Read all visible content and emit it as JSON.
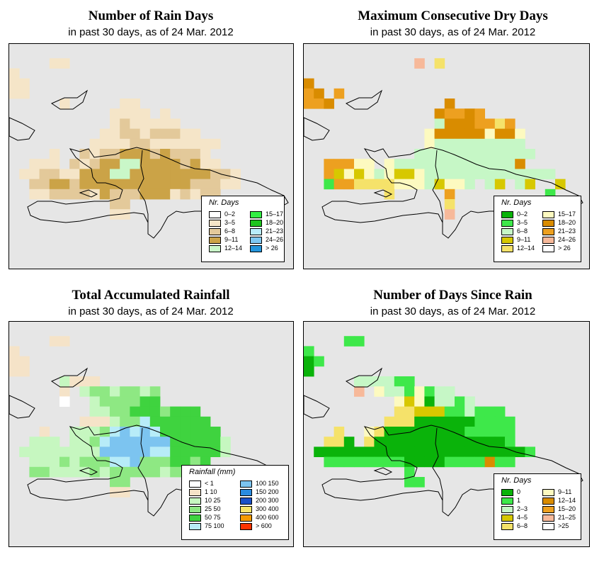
{
  "panels": [
    {
      "title": "Number of Rain Days",
      "subtitle": "in past 30 days, as of  24 Mar. 2012",
      "legend": {
        "title": "Nr. Days",
        "items": [
          {
            "label": "0–2",
            "color": "#ffffff"
          },
          {
            "label": "3–5",
            "color": "#f5e5c8"
          },
          {
            "label": "6–8",
            "color": "#e3c99a"
          },
          {
            "label": "9–11",
            "color": "#cba347"
          },
          {
            "label": "12–14",
            "color": "#c9f7c8"
          },
          {
            "label": "15–17",
            "color": "#33ee44"
          },
          {
            "label": "18–20",
            "color": "#1ec41e"
          },
          {
            "label": "21–23",
            "color": "#b8ecfa"
          },
          {
            "label": "24–26",
            "color": "#7ec8f2"
          },
          {
            "label": "> 26",
            "color": "#2596dc"
          }
        ]
      },
      "palette": [
        "#ffffff",
        "#f5e5c8",
        "#e3c99a",
        "#cba347",
        "#c9f7c8"
      ]
    },
    {
      "title": "Maximum Consecutive Dry Days",
      "subtitle": "in past 30 days, as of  24 Mar. 2012",
      "legend": {
        "title": "Nr. Days",
        "items": [
          {
            "label": "0–2",
            "color": "#0ab30a"
          },
          {
            "label": "3–5",
            "color": "#3ee84a"
          },
          {
            "label": "6–8",
            "color": "#c6f7c6"
          },
          {
            "label": "9–11",
            "color": "#d7c800"
          },
          {
            "label": "12–14",
            "color": "#f5e26a"
          },
          {
            "label": "15–17",
            "color": "#fdfac0"
          },
          {
            "label": "18–20",
            "color": "#d98c00"
          },
          {
            "label": "21–23",
            "color": "#eda020"
          },
          {
            "label": "24–26",
            "color": "#f7b99a"
          },
          {
            "label": "> 26",
            "color": "#ffffff"
          }
        ]
      },
      "palette": [
        "#c6f7c6",
        "#d98c00",
        "#eda020",
        "#f5e26a",
        "#d7c800",
        "#fdfac0",
        "#3ee84a",
        "#f7b99a"
      ]
    },
    {
      "title": "Total Accumulated Rainfall",
      "subtitle": "in past 30 days, as of  24 Mar. 2012",
      "legend": {
        "title": "Rainfall (mm)",
        "items": [
          {
            "label": "< 1",
            "color": "#ffffff"
          },
          {
            "label": "1   10",
            "color": "#f5e3c8"
          },
          {
            "label": "10   25",
            "color": "#c6f7c0"
          },
          {
            "label": "25   50",
            "color": "#8ee883"
          },
          {
            "label": "50   75",
            "color": "#3fd33f"
          },
          {
            "label": "75  100",
            "color": "#b7ecf8"
          },
          {
            "label": "100  150",
            "color": "#7cc4f0"
          },
          {
            "label": "150  200",
            "color": "#2a8ce0"
          },
          {
            "label": "200  300",
            "color": "#1a50c8"
          },
          {
            "label": "300  400",
            "color": "#f7e46a"
          },
          {
            "label": "400  600",
            "color": "#f59a00"
          },
          {
            "label": "> 600",
            "color": "#ff3300"
          }
        ]
      },
      "palette": [
        "#ffffff",
        "#f5e3c8",
        "#c6f7c0",
        "#8ee883",
        "#3fd33f",
        "#b7ecf8",
        "#7cc4f0"
      ]
    },
    {
      "title": "Number of Days Since Rain",
      "subtitle": "in past 30 days, as of  24 Mar. 2012",
      "legend": {
        "title": "Nr. Days",
        "items": [
          {
            "label": "0",
            "color": "#0ab30a"
          },
          {
            "label": "1",
            "color": "#3ee84a"
          },
          {
            "label": "2–3",
            "color": "#c6f7c6"
          },
          {
            "label": "4–5",
            "color": "#d7c800"
          },
          {
            "label": "6–8",
            "color": "#f5e26a"
          },
          {
            "label": "9–11",
            "color": "#fdfac0"
          },
          {
            "label": "12–14",
            "color": "#d98c00"
          },
          {
            "label": "15–20",
            "color": "#eda020"
          },
          {
            "label": "21–25",
            "color": "#f7b99a"
          },
          {
            "label": ">25",
            "color": "#ffffff"
          }
        ]
      },
      "palette": [
        "#0ab30a",
        "#3ee84a",
        "#c6f7c6",
        "#d7c800",
        "#f5e26a",
        "#fdfac0",
        "#d98c00",
        "#f7b99a"
      ]
    }
  ],
  "grids": [
    [
      "......................",
      "....11................",
      "1......................",
      "11.....................",
      "11.....................",
      ".....1.....11..........",
      "..........1111.1.......",
      "..........1211111......",
      ".........1122122211....",
      "........1111221111111..",
      "....1..2122333232221...",
      "..111.212334433332311..",
      ".1122113334433333333221",
      "..223323333333333322211",
      "..1122221322233312122..",
      "..........22...........",
      "..........11...........",
      "......................."
    ],
    [
      "...........................",
      "...........7.3.............",
      "...........................",
      "1..........................",
      "21.2.......................",
      "221...........1............",
      ".............12212.........",
      ".............01112232......",
      "............5111115115.....",
      "............5000000000.....",
      "...........000000000000....",
      "..22255.50000000000001.....",
      "..24545054450000000000000..",
      "..622333355504550.04.04..4.",
      "........3.....2.........6..",
      "..............3............",
      "..............7............"
    ],
    [
      "......................",
      "....11................",
      "1.....................",
      "11....................",
      "11....................",
      ".....2111.............",
      ".....1.23323323.......",
      ".....0..2333344.......",
      "........22334443444...",
      ".......1112335444444..",
      "...1..222356565444444.",
      "..222.2235666666444442",
      ".222222226666655444442",
      "..222323335563334434...",
      "..33222232333332333...",
      "..........33..........",
      "..........11..........",
      "......................"
    ],
    [
      "......................",
      "....11................",
      "1.....................",
      "01....................",
      "0.....................",
      ".....222211...........",
      ".....7.52215122.......",
      ".........53502212.....",
      ".........44333112111..",
      "........4440000001111.",
      "...4..540000000011111.",
      "..440.400000000000001.",
      ".0000000000000000000001",
      "..1111111100001111611..",
      "..........1............",
      "..........11...........",
      "......................."
    ]
  ]
}
